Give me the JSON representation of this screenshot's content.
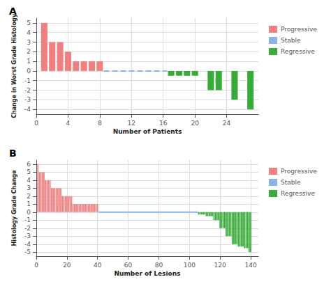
{
  "chart_data": [
    {
      "type": "bar",
      "title": "A",
      "xlabel": "Number of Patients",
      "ylabel": "Change in Worst Grade Histology",
      "xlim": [
        0,
        28
      ],
      "ylim": [
        -4.5,
        5.5
      ],
      "xticks": [
        0,
        4,
        8,
        12,
        16,
        20,
        24
      ],
      "yticks": [
        -4,
        -3,
        -2,
        -1,
        0,
        1,
        2,
        3,
        4,
        5
      ],
      "grid": true,
      "legend": "right",
      "series": [
        {
          "name": "Progressive",
          "type": "bar",
          "color": "#f08080",
          "x": [
            1,
            2,
            3,
            4,
            5,
            6,
            7,
            8
          ],
          "values": [
            5,
            3,
            3,
            2,
            1,
            1,
            1,
            1
          ]
        },
        {
          "name": "Stable",
          "type": "line",
          "line_style": "dashed",
          "color": "#8ab4e8",
          "x": [
            8.5,
            16.5
          ],
          "values": [
            0,
            0
          ]
        },
        {
          "name": "Regressive",
          "type": "bar",
          "color": "#3aaa3a",
          "x": [
            17,
            18,
            19,
            20,
            21,
            22,
            23,
            24,
            25,
            26,
            27
          ],
          "values": [
            -0.5,
            -0.5,
            -0.5,
            -0.5,
            0,
            -2,
            -2,
            0,
            -3,
            0,
            -4
          ]
        }
      ]
    },
    {
      "type": "bar",
      "title": "B",
      "xlabel": "Number of Lesions",
      "ylabel": "Histology Grade Change",
      "xlim": [
        0,
        145
      ],
      "ylim": [
        -5.5,
        6.5
      ],
      "xticks": [
        0,
        20,
        40,
        60,
        80,
        100,
        120,
        140
      ],
      "yticks": [
        -5,
        -4,
        -3,
        -2,
        -1,
        0,
        1,
        2,
        3,
        4,
        5,
        6
      ],
      "grid": true,
      "legend": "right",
      "series": [
        {
          "name": "Progressive",
          "type": "bar",
          "color": "#f08080",
          "x": [
            1,
            2,
            3,
            4,
            5,
            6,
            7,
            8,
            9,
            10,
            11,
            12,
            13,
            14,
            15,
            16,
            17,
            18,
            19,
            20,
            21,
            22,
            23,
            24,
            25,
            26,
            27,
            28,
            29,
            30,
            31,
            32,
            33,
            34,
            35,
            36,
            37,
            38,
            39,
            40
          ],
          "values": [
            6,
            5,
            5,
            5,
            5,
            4,
            4,
            4,
            4,
            3,
            3,
            3,
            3,
            3,
            3,
            3,
            2,
            2,
            2,
            2,
            2,
            2,
            2,
            1,
            1,
            1,
            1,
            1,
            1,
            1,
            1,
            1,
            1,
            1,
            1,
            1,
            1,
            1,
            1,
            1
          ]
        },
        {
          "name": "Stable",
          "type": "line",
          "line_style": "solid",
          "color": "#8ab4e8",
          "x": [
            40.5,
            105.5
          ],
          "values": [
            0,
            0
          ]
        },
        {
          "name": "Regressive",
          "type": "bar",
          "color": "#3aaa3a",
          "x": [
            106,
            107,
            108,
            109,
            110,
            111,
            112,
            113,
            114,
            115,
            116,
            117,
            118,
            119,
            120,
            121,
            122,
            123,
            124,
            125,
            126,
            127,
            128,
            129,
            130,
            131,
            132,
            133,
            134,
            135,
            136,
            137,
            138,
            139,
            140
          ],
          "values": [
            -0.3,
            -0.3,
            -0.3,
            -0.3,
            -0.3,
            -0.5,
            -0.5,
            -0.5,
            -0.5,
            -0.5,
            -1,
            -1,
            -1,
            -1,
            -2,
            -2,
            -2,
            -2,
            -3,
            -3,
            -3,
            -3,
            -4,
            -4,
            -4,
            -4,
            -4.3,
            -4.3,
            -4.3,
            -4.3,
            -4.5,
            -4.5,
            -4.5,
            -5,
            -5
          ]
        }
      ]
    }
  ]
}
